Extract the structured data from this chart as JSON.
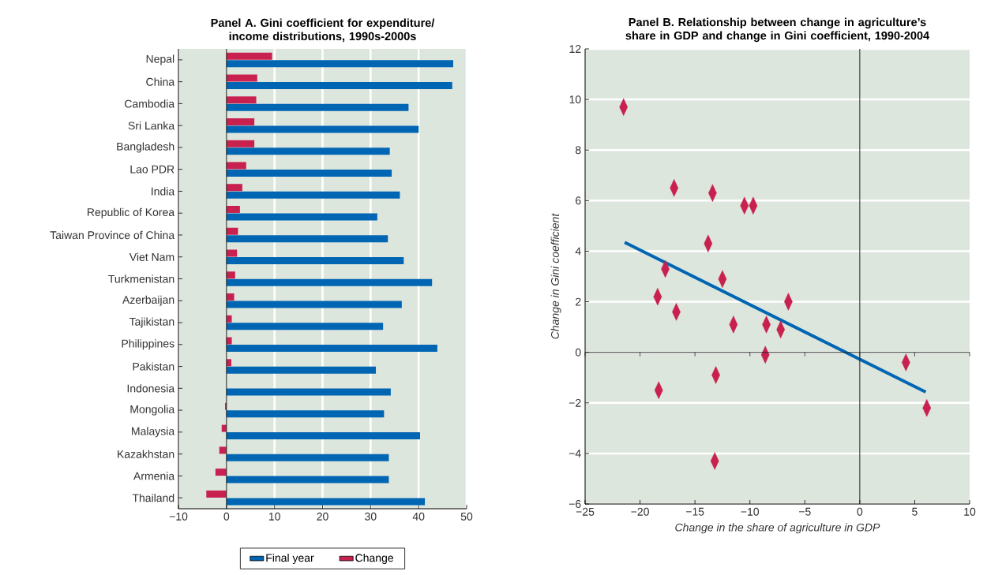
{
  "chart_data": [
    {
      "type": "bar",
      "orientation": "horizontal",
      "title": "Panel A. Gini coefficient for expenditure/ income distributions, 1990s-2000s",
      "categories": [
        "Nepal",
        "China",
        "Cambodia",
        "Sri Lanka",
        "Bangladesh",
        "Lao PDR",
        "India",
        "Republic of Korea",
        "Taiwan Province of China",
        "Viet Nam",
        "Turkmenistan",
        "Azerbaijan",
        "Tajikistan",
        "Philippines",
        "Pakistan",
        "Indonesia",
        "Mongolia",
        "Malaysia",
        "Kazakhstan",
        "Armenia",
        "Thailand"
      ],
      "series": [
        {
          "name": "Final year",
          "color": "#0066b3",
          "values": [
            47.2,
            47.0,
            37.9,
            40.0,
            34.0,
            34.4,
            36.1,
            31.4,
            33.6,
            36.9,
            42.8,
            36.5,
            32.6,
            43.9,
            31.1,
            34.2,
            32.8,
            40.3,
            33.8,
            33.8,
            41.3
          ]
        },
        {
          "name": "Change",
          "color": "#c8204f",
          "values": [
            9.5,
            6.4,
            6.2,
            5.8,
            5.8,
            4.1,
            3.3,
            2.8,
            2.4,
            2.2,
            1.8,
            1.6,
            1.1,
            1.1,
            1.0,
            0,
            -0.3,
            -1.0,
            -1.5,
            -2.3,
            -4.2
          ]
        }
      ],
      "xlim": [
        -10,
        50
      ],
      "xticks": [
        {
          "value": -10,
          "label": "−10"
        },
        0,
        10,
        20,
        30,
        40,
        50
      ],
      "grid": "x",
      "legend": "bottom",
      "ref_lines": [
        {
          "axis": "x",
          "value": 0,
          "color": "#222222"
        }
      ]
    },
    {
      "type": "scatter",
      "title": "Panel B. Relationship between change in agriculture’s share in GDP and change in Gini coefficient, 1990-2004",
      "xlabel": "Change in the share of agriculture in GDP",
      "ylabel": "Change in Gini coefficient",
      "series": [
        {
          "color": "#c8204f",
          "x": [
            -21.5,
            -16.9,
            -13.4,
            -10.5,
            -9.7,
            -13.8,
            -17.7,
            -12.5,
            -18.4,
            -16.7,
            -11.5,
            -8.5,
            -7.2,
            -6.5,
            -8.6,
            4.2,
            6.1,
            -13.1,
            -18.3,
            -13.2
          ],
          "values": [
            9.7,
            6.5,
            6.3,
            5.8,
            5.8,
            4.3,
            3.3,
            2.9,
            2.2,
            1.6,
            1.1,
            1.1,
            0.9,
            2.0,
            -0.1,
            -0.4,
            -2.2,
            -0.9,
            -1.5,
            -4.3
          ]
        },
        {
          "type": "line",
          "marker": "none",
          "color": "#0066b3",
          "x": [
            -21.4,
            6.0
          ],
          "values": [
            4.35,
            -1.57
          ]
        }
      ],
      "xlim": [
        -25,
        10
      ],
      "ylim": [
        -6,
        12
      ],
      "xticks": [
        {
          "value": -25,
          "label": "−25"
        },
        {
          "value": -20,
          "label": "−20"
        },
        {
          "value": -15,
          "label": "−15"
        },
        {
          "value": -10,
          "label": "−10"
        },
        {
          "value": -5,
          "label": "−5"
        },
        0,
        5,
        10
      ],
      "yticks": [
        {
          "value": -6,
          "label": "−6"
        },
        {
          "value": -4,
          "label": "−4"
        },
        {
          "value": -2,
          "label": "−2"
        },
        0,
        2,
        4,
        6,
        8,
        10,
        12
      ],
      "grid": "y",
      "marker": "diamond",
      "ref_lines": [
        {
          "axis": "x",
          "value": 0,
          "color": "#222222"
        }
      ]
    }
  ]
}
